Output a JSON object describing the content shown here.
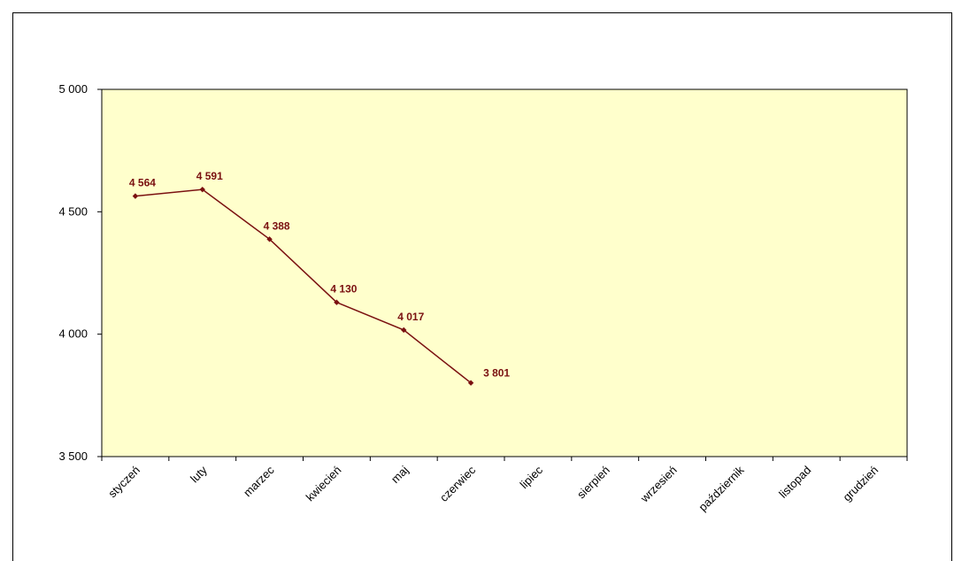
{
  "chart_data": {
    "type": "line",
    "categories": [
      "styczeń",
      "luty",
      "marzec",
      "kwiecień",
      "maj",
      "czerwiec",
      "lipiec",
      "sierpień",
      "wrzesień",
      "październik",
      "listopad",
      "grudzień"
    ],
    "series": [
      {
        "values": [
          4564,
          4591,
          4388,
          4130,
          4017,
          3801,
          null,
          null,
          null,
          null,
          null,
          null
        ]
      }
    ],
    "data_labels": [
      "4 564",
      "4 591",
      "4 388",
      "4 130",
      "4 017",
      "3 801"
    ],
    "y_tick_labels": [
      "5 000",
      "4 500",
      "4 000",
      "3 500"
    ],
    "y_ticks": [
      5000,
      4500,
      4000,
      3500
    ],
    "ylim": [
      3500,
      5000
    ],
    "title": "",
    "xlabel": "",
    "ylabel": "",
    "grid": false,
    "legend": "none",
    "colors": {
      "line": "#7a1010",
      "plot_background": "#ffffcc",
      "axis": "#000000"
    }
  }
}
